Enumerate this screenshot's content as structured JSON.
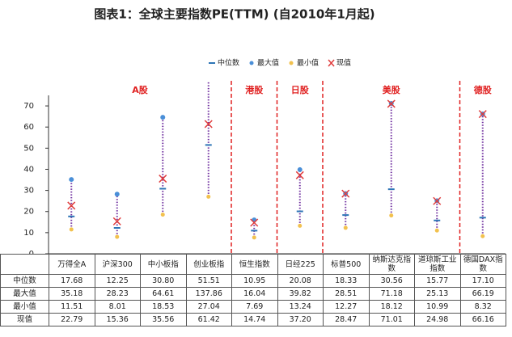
{
  "chart_data": {
    "type": "range-dot",
    "title": "图表1：全球主要指数PE(TTM) (自2010年1月起)",
    "categories": [
      "万得全A",
      "沪深300",
      "中小板指",
      "创业板指",
      "恒生指数",
      "日经225",
      "标普500",
      "纳斯达克指数",
      "道琼斯工业指数",
      "德国DAX指数"
    ],
    "groups": [
      {
        "name": "A股",
        "count": 4
      },
      {
        "name": "港股",
        "count": 1
      },
      {
        "name": "日股",
        "count": 1
      },
      {
        "name": "美股",
        "count": 3
      },
      {
        "name": "德股",
        "count": 1
      }
    ],
    "series": [
      {
        "name": "中位数",
        "color": "#2e75b6",
        "values": [
          17.68,
          12.25,
          30.8,
          51.51,
          10.95,
          20.08,
          18.33,
          30.56,
          15.77,
          17.1
        ],
        "value_labels": [
          "17.68",
          "12.25",
          "30.80",
          "51.51",
          "10.95",
          "20.08",
          "18.33",
          "30.56",
          "15.77",
          "17.10"
        ]
      },
      {
        "name": "最大值",
        "color": "#4a8fd8",
        "values": [
          35.18,
          28.23,
          64.61,
          137.86,
          16.04,
          39.82,
          28.51,
          71.18,
          25.13,
          66.19
        ],
        "value_labels": [
          "35.18",
          "28.23",
          "64.61",
          "137.86",
          "16.04",
          "39.82",
          "28.51",
          "71.18",
          "25.13",
          "66.19"
        ]
      },
      {
        "name": "最小值",
        "color": "#f2c14e",
        "values": [
          11.51,
          8.01,
          18.53,
          27.04,
          7.69,
          13.24,
          12.27,
          18.12,
          10.99,
          8.32
        ],
        "value_labels": [
          "11.51",
          "8.01",
          "18.53",
          "27.04",
          "7.69",
          "13.24",
          "12.27",
          "18.12",
          "10.99",
          "8.32"
        ]
      },
      {
        "name": "现值",
        "color": "#e03c3c",
        "values": [
          22.79,
          15.36,
          35.56,
          61.42,
          14.74,
          37.2,
          28.47,
          71.01,
          24.98,
          66.16
        ],
        "value_labels": [
          "22.79",
          "15.36",
          "35.56",
          "61.42",
          "14.74",
          "37.20",
          "28.47",
          "71.01",
          "24.98",
          "66.16"
        ]
      }
    ],
    "range_color": "#7030a0",
    "group_color": "#e02020",
    "ylim": [
      0,
      75
    ],
    "yticks": [
      0,
      10,
      20,
      30,
      40,
      50,
      60,
      70
    ]
  }
}
